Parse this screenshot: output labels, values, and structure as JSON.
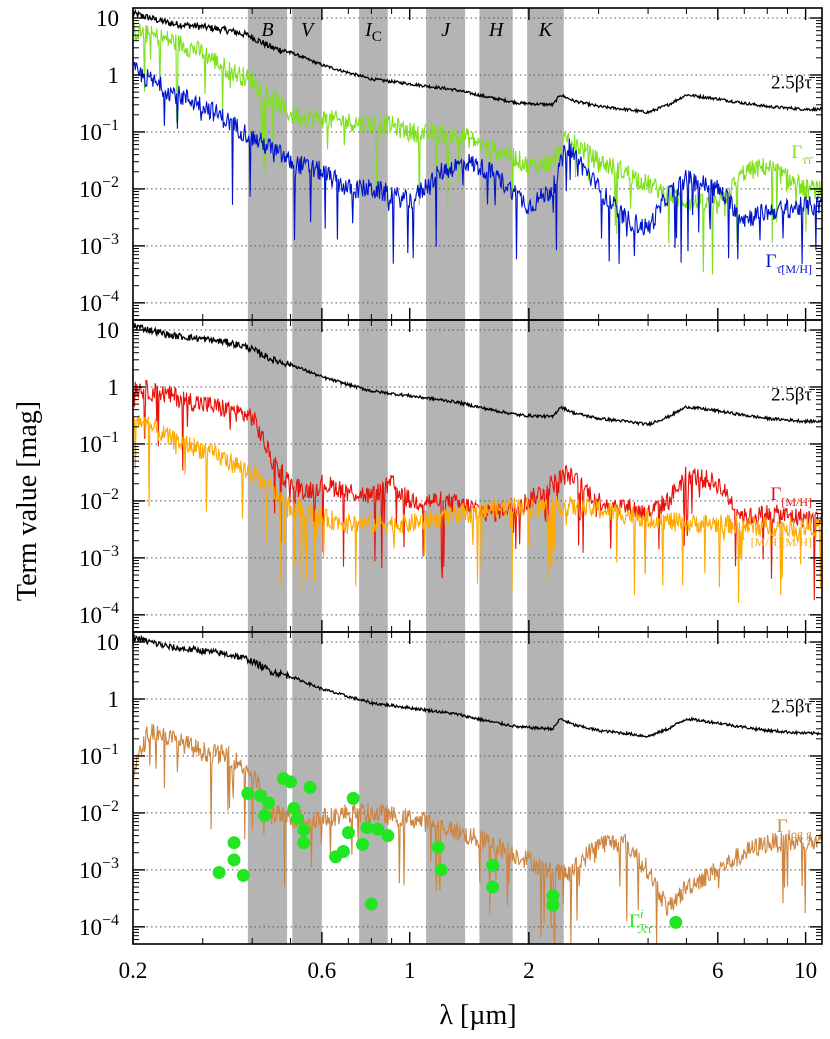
{
  "chart_data": {
    "type": "line",
    "x_scale": "log",
    "y_scale": "log",
    "xlabel": "λ [µm]",
    "ylabel": "Term value [mag]",
    "xlim": [
      0.2,
      11.0
    ],
    "ylim": [
      5e-05,
      15
    ],
    "x_ticks": [
      {
        "value": 0.2,
        "label": "0.2"
      },
      {
        "value": 0.6,
        "label": "0.6"
      },
      {
        "value": 1,
        "label": "1"
      },
      {
        "value": 2,
        "label": "2"
      },
      {
        "value": 6,
        "label": "6"
      },
      {
        "value": 10,
        "label": "10"
      }
    ],
    "y_ticks": [
      {
        "value": 10,
        "base": "10",
        "exp": ""
      },
      {
        "value": 1,
        "base": "1",
        "exp": ""
      },
      {
        "value": 0.1,
        "base": "10",
        "exp": "−1"
      },
      {
        "value": 0.01,
        "base": "10",
        "exp": "−2"
      },
      {
        "value": 0.001,
        "base": "10",
        "exp": "−3"
      },
      {
        "value": 0.0001,
        "base": "10",
        "exp": "−4"
      }
    ],
    "bands": [
      {
        "name": "B",
        "sub": "",
        "lo": 0.39,
        "hi": 0.49
      },
      {
        "name": "V",
        "sub": "",
        "lo": 0.505,
        "hi": 0.6
      },
      {
        "name": "I",
        "sub": "C",
        "lo": 0.745,
        "hi": 0.88
      },
      {
        "name": "J",
        "sub": "",
        "lo": 1.1,
        "hi": 1.38
      },
      {
        "name": "H",
        "sub": "",
        "lo": 1.5,
        "hi": 1.82
      },
      {
        "name": "K",
        "sub": "",
        "lo": 1.98,
        "hi": 2.45
      }
    ],
    "colors": {
      "black": "#000000",
      "green": "#7FE01C",
      "blue": "#0014CC",
      "red": "#E8120C",
      "orange": "#FFAA00",
      "tan": "#CD8540",
      "dots": "#22E622",
      "band": "#B4B4B4"
    },
    "panels": [
      {
        "name": "top",
        "series": [
          {
            "name": "2.5βτ̄",
            "label": "2.5βτ̄",
            "color": "black",
            "x": [
              0.2,
              0.25,
              0.3,
              0.35,
              0.39,
              0.45,
              0.5,
              0.6,
              0.7,
              0.8,
              1.0,
              1.3,
              1.6,
              1.9,
              2.3,
              2.4,
              2.6,
              3.0,
              3.5,
              4.0,
              4.5,
              5.0,
              6.0,
              7.0,
              8.0,
              10.0,
              11.0
            ],
            "y": [
              12,
              8,
              7,
              6,
              5,
              3,
              2.5,
              1.5,
              1.1,
              0.85,
              0.7,
              0.55,
              0.4,
              0.32,
              0.3,
              0.45,
              0.35,
              0.28,
              0.25,
              0.22,
              0.3,
              0.45,
              0.38,
              0.32,
              0.28,
              0.25,
              0.25
            ]
          },
          {
            "name": "Γ_ττ",
            "label": "Γττ",
            "color": "green",
            "x": [
              0.2,
              0.25,
              0.3,
              0.35,
              0.4,
              0.45,
              0.5,
              0.6,
              0.7,
              0.8,
              0.9,
              1.0,
              1.2,
              1.4,
              1.6,
              1.8,
              2.0,
              2.3,
              2.5,
              3.0,
              3.5,
              4.0,
              4.5,
              5.0,
              6.0,
              7.0,
              8.0,
              10.0,
              11.0
            ],
            "y": [
              6,
              4,
              2.5,
              1.2,
              0.8,
              0.4,
              0.2,
              0.17,
              0.15,
              0.14,
              0.13,
              0.1,
              0.09,
              0.08,
              0.05,
              0.04,
              0.025,
              0.03,
              0.08,
              0.03,
              0.02,
              0.012,
              0.008,
              0.006,
              0.005,
              0.02,
              0.025,
              0.01,
              0.01
            ]
          },
          {
            "name": "Γ_τ[M/H]",
            "label": "Γτ[M/H]",
            "color": "blue",
            "x": [
              0.2,
              0.25,
              0.3,
              0.35,
              0.4,
              0.45,
              0.5,
              0.6,
              0.7,
              0.8,
              0.9,
              1.0,
              1.2,
              1.4,
              1.6,
              1.8,
              2.0,
              2.3,
              2.5,
              3.0,
              3.5,
              4.0,
              4.5,
              5.0,
              6.0,
              7.0,
              8.0,
              10.0,
              11.0
            ],
            "y": [
              1.2,
              0.5,
              0.3,
              0.15,
              0.08,
              0.05,
              0.03,
              0.02,
              0.01,
              0.01,
              0.008,
              0.006,
              0.02,
              0.03,
              0.02,
              0.01,
              0.005,
              0.01,
              0.06,
              0.01,
              0.003,
              0.002,
              0.008,
              0.015,
              0.01,
              0.003,
              0.004,
              0.005,
              0.005
            ]
          }
        ]
      },
      {
        "name": "middle",
        "series": [
          {
            "name": "2.5βτ̄",
            "label": "2.5βτ̄",
            "color": "black",
            "x": [
              0.2,
              0.25,
              0.3,
              0.35,
              0.39,
              0.45,
              0.5,
              0.6,
              0.7,
              0.8,
              1.0,
              1.3,
              1.6,
              1.9,
              2.3,
              2.4,
              2.6,
              3.0,
              3.5,
              4.0,
              4.5,
              5.0,
              6.0,
              7.0,
              8.0,
              10.0,
              11.0
            ],
            "y": [
              12,
              8,
              7,
              6,
              5,
              3,
              2.5,
              1.5,
              1.1,
              0.85,
              0.7,
              0.55,
              0.4,
              0.32,
              0.3,
              0.45,
              0.35,
              0.28,
              0.25,
              0.22,
              0.3,
              0.45,
              0.38,
              0.32,
              0.28,
              0.25,
              0.25
            ]
          },
          {
            "name": "Γ_[M/H]",
            "label": "Γ[M/H]",
            "color": "red",
            "x": [
              0.2,
              0.25,
              0.3,
              0.35,
              0.4,
              0.42,
              0.45,
              0.5,
              0.55,
              0.6,
              0.7,
              0.8,
              0.9,
              1.0,
              1.2,
              1.4,
              1.6,
              1.8,
              2.0,
              2.3,
              2.5,
              3.0,
              3.5,
              4.0,
              4.5,
              5.0,
              6.0,
              7.0,
              8.0,
              10.0,
              11.0
            ],
            "y": [
              1.0,
              0.7,
              0.5,
              0.4,
              0.3,
              0.15,
              0.05,
              0.02,
              0.015,
              0.02,
              0.015,
              0.012,
              0.02,
              0.01,
              0.01,
              0.008,
              0.006,
              0.008,
              0.01,
              0.02,
              0.03,
              0.01,
              0.008,
              0.006,
              0.01,
              0.03,
              0.02,
              0.005,
              0.006,
              0.005,
              0.005
            ]
          },
          {
            "name": "Γ_[M/H][M/H]",
            "label": "Γ[M/H][M/H]",
            "color": "orange",
            "x": [
              0.2,
              0.25,
              0.3,
              0.35,
              0.4,
              0.45,
              0.5,
              0.6,
              0.7,
              0.8,
              0.9,
              1.0,
              1.2,
              1.4,
              1.6,
              1.8,
              2.0,
              2.5,
              3.0,
              4.0,
              5.0,
              6.0,
              8.0,
              10.0,
              11.0
            ],
            "y": [
              0.3,
              0.12,
              0.08,
              0.05,
              0.03,
              0.015,
              0.008,
              0.005,
              0.004,
              0.004,
              0.004,
              0.004,
              0.005,
              0.006,
              0.007,
              0.008,
              0.008,
              0.008,
              0.007,
              0.005,
              0.004,
              0.004,
              0.0035,
              0.0035,
              0.0035
            ]
          }
        ]
      },
      {
        "name": "bottom",
        "series": [
          {
            "name": "2.5βτ̄",
            "label": "2.5βτ̄",
            "color": "black",
            "x": [
              0.2,
              0.25,
              0.3,
              0.35,
              0.39,
              0.45,
              0.5,
              0.6,
              0.7,
              0.8,
              1.0,
              1.3,
              1.6,
              1.9,
              2.3,
              2.4,
              2.6,
              3.0,
              3.5,
              4.0,
              4.5,
              5.0,
              6.0,
              7.0,
              8.0,
              10.0,
              11.0
            ],
            "y": [
              12,
              8,
              7,
              6,
              5,
              3,
              2.5,
              1.5,
              1.1,
              0.85,
              0.7,
              0.55,
              0.4,
              0.32,
              0.3,
              0.45,
              0.35,
              0.28,
              0.25,
              0.22,
              0.3,
              0.45,
              0.38,
              0.32,
              0.28,
              0.25,
              0.25
            ]
          },
          {
            "name": "Γ_log g",
            "label": "Γlog g",
            "color": "tan",
            "x": [
              0.2,
              0.22,
              0.25,
              0.3,
              0.35,
              0.4,
              0.45,
              0.5,
              0.6,
              0.7,
              0.8,
              1.0,
              1.2,
              1.4,
              1.6,
              1.8,
              2.0,
              2.2,
              2.5,
              3.0,
              3.5,
              4.0,
              4.5,
              5.0,
              6.0,
              7.0,
              8.0,
              10.0,
              11.0
            ],
            "y": [
              0.05,
              0.3,
              0.2,
              0.12,
              0.1,
              0.05,
              0.01,
              0.008,
              0.008,
              0.01,
              0.01,
              0.008,
              0.006,
              0.004,
              0.003,
              0.002,
              0.0015,
              0.001,
              0.0008,
              0.003,
              0.003,
              0.001,
              0.0002,
              0.0005,
              0.001,
              0.002,
              0.003,
              0.003,
              0.003
            ]
          }
        ],
        "points": {
          "name": "Γ^i_Rτ",
          "label": "Γ",
          "sup": "i",
          "sub": "ℛτ̄",
          "color": "dots",
          "x": [
            0.33,
            0.36,
            0.36,
            0.38,
            0.39,
            0.42,
            0.43,
            0.44,
            0.48,
            0.5,
            0.51,
            0.52,
            0.54,
            0.54,
            0.56,
            0.65,
            0.68,
            0.7,
            0.72,
            0.76,
            0.78,
            0.8,
            0.83,
            0.88,
            1.18,
            1.2,
            1.62,
            1.62,
            2.3,
            2.3,
            4.7
          ],
          "y": [
            0.0009,
            0.0015,
            0.003,
            0.0008,
            0.022,
            0.02,
            0.009,
            0.015,
            0.04,
            0.035,
            0.012,
            0.008,
            0.005,
            0.003,
            0.028,
            0.0017,
            0.0021,
            0.0045,
            0.018,
            0.0028,
            0.0055,
            0.00025,
            0.0052,
            0.004,
            0.0025,
            0.001,
            0.0012,
            0.0005,
            0.00035,
            0.00024,
            0.00012
          ]
        }
      }
    ]
  }
}
